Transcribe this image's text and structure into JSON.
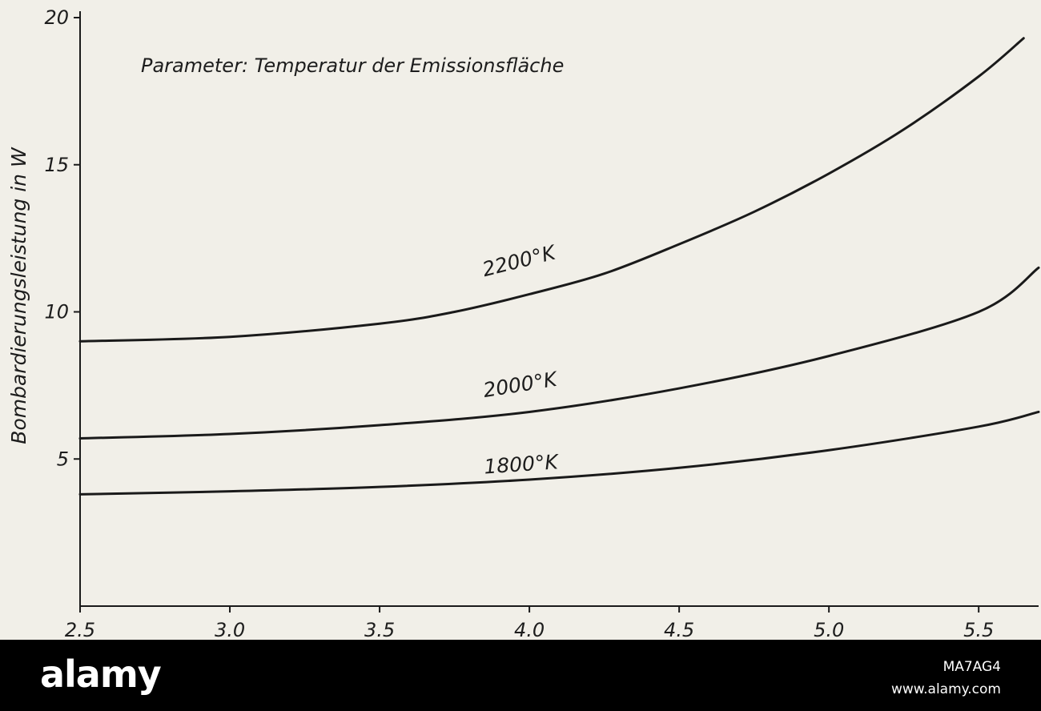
{
  "chart_data": {
    "type": "line",
    "annotation": "Parameter: Temperatur  der  Emissionsfläche",
    "ylabel": "Bombardierungsleistung in W",
    "xlabel": "",
    "xlim": [
      2.5,
      5.7
    ],
    "ylim": [
      0,
      20
    ],
    "x_ticks": [
      {
        "value": 2.5,
        "label": "2.5"
      },
      {
        "value": 3.0,
        "label": "3.0"
      },
      {
        "value": 3.5,
        "label": "3.5"
      },
      {
        "value": 4.0,
        "label": "4.0"
      },
      {
        "value": 4.5,
        "label": "4.5"
      },
      {
        "value": 5.0,
        "label": "5.0"
      },
      {
        "value": 5.5,
        "label": "5.5"
      }
    ],
    "y_ticks": [
      {
        "value": 5,
        "label": "5"
      },
      {
        "value": 10,
        "label": "10"
      },
      {
        "value": 15,
        "label": "15"
      },
      {
        "value": 20,
        "label": "20"
      }
    ],
    "grid": false,
    "legend": "none",
    "line_color": "#1a1a1a",
    "series": [
      {
        "name": "2200°K",
        "x": [
          2.5,
          3.0,
          3.5,
          3.75,
          4.0,
          4.25,
          4.5,
          4.75,
          5.0,
          5.25,
          5.5,
          5.65
        ],
        "y": [
          9.0,
          9.15,
          9.6,
          10.0,
          10.6,
          11.3,
          12.3,
          13.4,
          14.7,
          16.2,
          18.0,
          19.3
        ],
        "label_at": {
          "x": 3.85,
          "y": 11.2,
          "angle": -14
        }
      },
      {
        "name": "2000°K",
        "x": [
          2.5,
          3.0,
          3.5,
          4.0,
          4.5,
          5.0,
          5.5,
          5.7
        ],
        "y": [
          5.7,
          5.85,
          6.15,
          6.6,
          7.4,
          8.5,
          10.0,
          11.5
        ],
        "label_at": {
          "x": 3.85,
          "y": 7.1,
          "angle": -9
        }
      },
      {
        "name": "1800°K",
        "x": [
          2.5,
          3.0,
          3.5,
          4.0,
          4.5,
          5.0,
          5.5,
          5.7
        ],
        "y": [
          3.8,
          3.9,
          4.05,
          4.3,
          4.7,
          5.3,
          6.1,
          6.6
        ],
        "label_at": {
          "x": 3.85,
          "y": 4.5,
          "angle": -4
        }
      }
    ]
  },
  "footer": {
    "logo": "alamy",
    "image_id": "MA7AG4",
    "site": "www.alamy.com"
  }
}
